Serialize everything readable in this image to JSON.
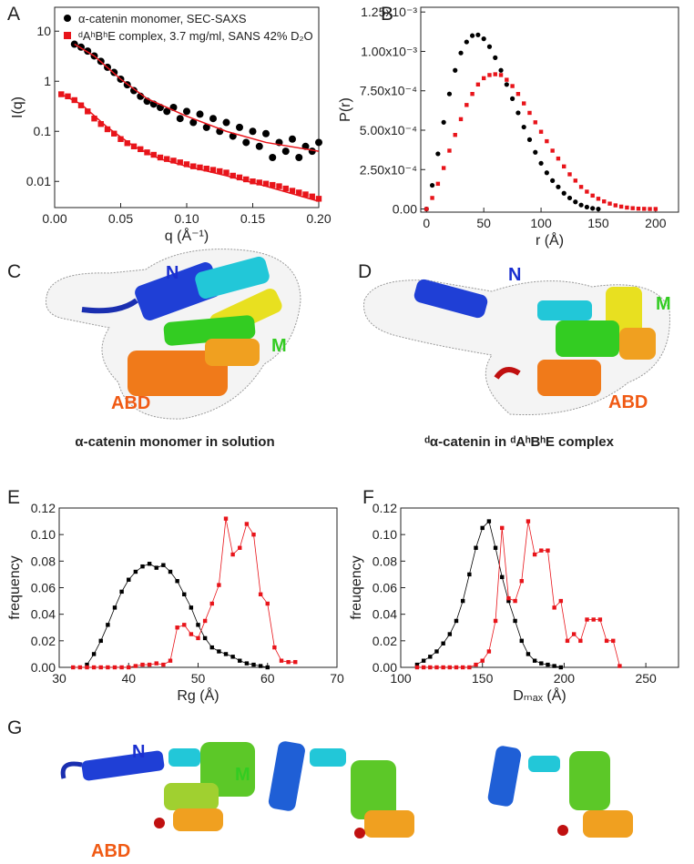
{
  "panels": [
    "A",
    "B",
    "C",
    "D",
    "E",
    "F",
    "G"
  ],
  "chart_data": [
    {
      "type": "scatter",
      "log_y": true,
      "legend": "upper left",
      "x_label": "q (Å⁻¹)",
      "y_label": "I(q)",
      "xlim": [
        0,
        0.2
      ],
      "ylim": [
        0.003,
        30
      ],
      "xticks": [
        {
          "value": 0,
          "label": "0.00"
        },
        0.05,
        {
          "value": 0.1,
          "label": "0.10"
        },
        0.15,
        {
          "value": 0.2,
          "label": "0.20"
        }
      ],
      "yticks": [
        0.01,
        0.1,
        1,
        10
      ],
      "series": [
        {
          "name": "α-catenin monomer, SEC-SAXS",
          "color": "#000000",
          "marker": "circle",
          "x": [
            0.015,
            0.02,
            0.025,
            0.03,
            0.035,
            0.04,
            0.045,
            0.05,
            0.055,
            0.06,
            0.065,
            0.07,
            0.075,
            0.08,
            0.085,
            0.09,
            0.095,
            0.1,
            0.105,
            0.11,
            0.115,
            0.12,
            0.125,
            0.13,
            0.135,
            0.14,
            0.145,
            0.15,
            0.155,
            0.16,
            0.165,
            0.17,
            0.175,
            0.18,
            0.185,
            0.19,
            0.195,
            0.2
          ],
          "values": [
            5.5,
            4.8,
            4,
            3.2,
            2.5,
            1.9,
            1.5,
            1.1,
            0.85,
            0.65,
            0.5,
            0.4,
            0.35,
            0.3,
            0.25,
            0.3,
            0.18,
            0.25,
            0.15,
            0.22,
            0.12,
            0.18,
            0.1,
            0.15,
            0.08,
            0.12,
            0.06,
            0.1,
            0.05,
            0.09,
            0.03,
            0.06,
            0.04,
            0.07,
            0.03,
            0.05,
            0.04,
            0.06
          ],
          "fit": {
            "color": "#e8141a",
            "x": [
              0.015,
              0.03,
              0.05,
              0.07,
              0.1,
              0.13,
              0.16,
              0.2
            ],
            "values": [
              5.5,
              3.2,
              1.1,
              0.45,
              0.2,
              0.1,
              0.06,
              0.04
            ]
          }
        },
        {
          "name": "ᵈAʰBʰE complex, 3.7 mg/ml, SANS 42% D₂O",
          "color": "#e8141a",
          "marker": "square",
          "x": [
            0.005,
            0.01,
            0.015,
            0.02,
            0.025,
            0.03,
            0.035,
            0.04,
            0.045,
            0.05,
            0.055,
            0.06,
            0.065,
            0.07,
            0.075,
            0.08,
            0.085,
            0.09,
            0.095,
            0.1,
            0.105,
            0.11,
            0.115,
            0.12,
            0.125,
            0.13,
            0.135,
            0.14,
            0.145,
            0.15,
            0.155,
            0.16,
            0.165,
            0.17,
            0.175,
            0.18,
            0.185,
            0.19,
            0.195,
            0.2
          ],
          "values": [
            0.55,
            0.5,
            0.42,
            0.33,
            0.25,
            0.18,
            0.14,
            0.11,
            0.09,
            0.07,
            0.058,
            0.05,
            0.044,
            0.038,
            0.034,
            0.03,
            0.028,
            0.026,
            0.024,
            0.022,
            0.02,
            0.019,
            0.018,
            0.017,
            0.016,
            0.015,
            0.013,
            0.012,
            0.011,
            0.01,
            0.0095,
            0.009,
            0.0085,
            0.008,
            0.0072,
            0.0065,
            0.006,
            0.0055,
            0.005,
            0.0045
          ],
          "fit": {
            "color": "#e8141a",
            "x": [
              0.005,
              0.02,
              0.04,
              0.06,
              0.08,
              0.1,
              0.13,
              0.16,
              0.2
            ],
            "values": [
              0.55,
              0.35,
              0.12,
              0.05,
              0.028,
              0.02,
              0.013,
              0.008,
              0.004
            ]
          }
        }
      ]
    },
    {
      "type": "scatter",
      "x_label": "r (Å)",
      "y_label": "P(r)",
      "xlim": [
        -5,
        220
      ],
      "ylim": [
        -2e-05,
        0.00128
      ],
      "xticks": [
        0,
        50,
        100,
        150,
        200
      ],
      "yticks": [
        {
          "value": 0,
          "label": "0.00"
        },
        {
          "value": 0.00025,
          "label": "2.50x10⁻⁴"
        },
        {
          "value": 0.0005,
          "label": "5.00x10⁻⁴"
        },
        {
          "value": 0.00075,
          "label": "7.50x10⁻⁴"
        },
        {
          "value": 0.001,
          "label": "1.00x10⁻³"
        },
        {
          "value": 0.00125,
          "label": "1.25x10⁻³"
        }
      ],
      "series": [
        {
          "color": "#000000",
          "marker": "circle",
          "x": [
            0,
            5,
            10,
            15,
            20,
            25,
            30,
            35,
            40,
            45,
            50,
            55,
            60,
            65,
            70,
            75,
            80,
            85,
            90,
            95,
            100,
            105,
            110,
            115,
            120,
            125,
            130,
            135,
            140,
            145,
            150
          ],
          "values": [
            0,
            0.00015,
            0.00035,
            0.00055,
            0.00073,
            0.00088,
            0.00099,
            0.00106,
            0.0011,
            0.001105,
            0.00108,
            0.00103,
            0.00096,
            0.00088,
            0.00079,
            0.0007,
            0.00061,
            0.00052,
            0.00044,
            0.00036,
            0.00029,
            0.00023,
            0.00018,
            0.00014,
            0.0001,
            7e-05,
            4.5e-05,
            2.5e-05,
            1.2e-05,
            4e-06,
            0
          ]
        },
        {
          "color": "#e8141a",
          "marker": "square",
          "x": [
            0,
            5,
            10,
            15,
            20,
            25,
            30,
            35,
            40,
            45,
            50,
            55,
            60,
            65,
            70,
            75,
            80,
            85,
            90,
            95,
            100,
            105,
            110,
            115,
            120,
            125,
            130,
            135,
            140,
            145,
            150,
            155,
            160,
            165,
            170,
            175,
            180,
            185,
            190,
            195,
            200
          ],
          "values": [
            0,
            7e-05,
            0.00016,
            0.00026,
            0.00037,
            0.00047,
            0.00057,
            0.00066,
            0.00073,
            0.00079,
            0.00083,
            0.00085,
            0.000855,
            0.00085,
            0.00082,
            0.00078,
            0.00073,
            0.00067,
            0.00061,
            0.00055,
            0.00049,
            0.00043,
            0.00037,
            0.00032,
            0.00027,
            0.00022,
            0.00018,
            0.00014,
            0.00011,
            8.5e-05,
            6.5e-05,
            4.8e-05,
            3.4e-05,
            2.3e-05,
            1.5e-05,
            9e-06,
            5e-06,
            2e-06,
            1e-06,
            0,
            0
          ]
        }
      ]
    },
    {
      "type": "line",
      "x_label": "Rg (Å)",
      "y_label": "frequency",
      "xlim": [
        30,
        70
      ],
      "ylim": [
        0,
        0.12
      ],
      "xticks": [
        30,
        40,
        50,
        60,
        70
      ],
      "yticks": [
        {
          "value": 0,
          "label": "0.00"
        },
        0.02,
        0.04,
        0.06,
        0.08,
        {
          "value": 0.1,
          "label": "0.10"
        },
        0.12
      ],
      "series": [
        {
          "color": "#000000",
          "marker": "square",
          "x": [
            34,
            35,
            36,
            37,
            38,
            39,
            40,
            41,
            42,
            43,
            44,
            45,
            46,
            47,
            48,
            49,
            50,
            51,
            52,
            53,
            54,
            55,
            56,
            57,
            58,
            59,
            60
          ],
          "values": [
            0.002,
            0.01,
            0.02,
            0.032,
            0.045,
            0.057,
            0.066,
            0.072,
            0.076,
            0.078,
            0.075,
            0.077,
            0.072,
            0.065,
            0.055,
            0.045,
            0.032,
            0.022,
            0.015,
            0.012,
            0.01,
            0.008,
            0.005,
            0.003,
            0.002,
            0.001,
            0
          ]
        },
        {
          "color": "#e8141a",
          "marker": "square",
          "x": [
            32,
            33,
            34,
            35,
            36,
            37,
            38,
            39,
            40,
            41,
            42,
            43,
            44,
            45,
            46,
            47,
            48,
            49,
            50,
            51,
            52,
            53,
            54,
            55,
            56,
            57,
            58,
            59,
            60,
            61,
            62,
            63,
            64
          ],
          "values": [
            0,
            0,
            0,
            0,
            0,
            0,
            0,
            0,
            0,
            0.001,
            0.002,
            0.002,
            0.003,
            0.002,
            0.005,
            0.03,
            0.032,
            0.025,
            0.022,
            0.035,
            0.048,
            0.062,
            0.112,
            0.085,
            0.09,
            0.108,
            0.1,
            0.055,
            0.048,
            0.015,
            0.005,
            0.004,
            0.004
          ]
        }
      ]
    },
    {
      "type": "line",
      "x_label": "Dₘₐₓ (Å)",
      "y_label": "freuqency",
      "xlim": [
        100,
        270
      ],
      "ylim": [
        0,
        0.12
      ],
      "xticks": [
        100,
        150,
        200,
        250
      ],
      "yticks": [
        {
          "value": 0,
          "label": "0.00"
        },
        0.02,
        0.04,
        0.06,
        0.08,
        {
          "value": 0.1,
          "label": "0.10"
        },
        0.12
      ],
      "series": [
        {
          "color": "#000000",
          "marker": "square",
          "x": [
            110,
            114,
            118,
            122,
            126,
            130,
            134,
            138,
            142,
            146,
            150,
            154,
            158,
            162,
            166,
            170,
            174,
            178,
            182,
            186,
            190,
            194,
            198
          ],
          "values": [
            0.002,
            0.005,
            0.008,
            0.012,
            0.018,
            0.025,
            0.035,
            0.05,
            0.07,
            0.09,
            0.105,
            0.11,
            0.09,
            0.068,
            0.05,
            0.035,
            0.02,
            0.01,
            0.005,
            0.003,
            0.002,
            0.001,
            0
          ]
        },
        {
          "color": "#e8141a",
          "marker": "square",
          "x": [
            110,
            114,
            118,
            122,
            126,
            130,
            134,
            138,
            142,
            146,
            150,
            154,
            158,
            162,
            166,
            170,
            174,
            178,
            182,
            186,
            190,
            194,
            198,
            202,
            206,
            210,
            214,
            218,
            222,
            226,
            230,
            234
          ],
          "values": [
            0,
            0,
            0,
            0,
            0,
            0,
            0,
            0,
            0,
            0.002,
            0.005,
            0.012,
            0.035,
            0.105,
            0.052,
            0.05,
            0.065,
            0.11,
            0.085,
            0.088,
            0.088,
            0.045,
            0.05,
            0.02,
            0.025,
            0.02,
            0.036,
            0.036,
            0.036,
            0.02,
            0.02,
            0.001
          ]
        }
      ]
    }
  ],
  "structures": {
    "C": {
      "labels": [
        "N",
        "M",
        "ABD"
      ],
      "caption": "α-catenin monomer in solution"
    },
    "D": {
      "labels": [
        "N",
        "M",
        "ABD"
      ],
      "caption": "ᵈα-catenin in ᵈAʰBʰE complex"
    },
    "G": {
      "labels": [
        "N",
        "M",
        "ABD"
      ]
    }
  }
}
